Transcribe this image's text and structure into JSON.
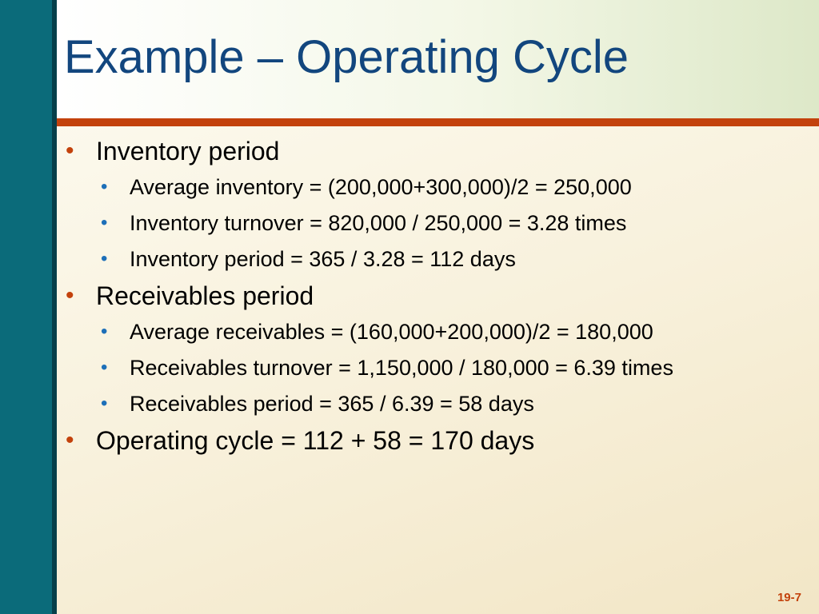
{
  "slide": {
    "title": "Example – Operating Cycle",
    "page_number": "19-7",
    "colors": {
      "left_bar": "#0b6b7a",
      "title_text": "#12467e",
      "accent_rule": "#c3420c",
      "sub_bullet": "#1d6fb8"
    }
  },
  "bullets": {
    "inventory_period": {
      "label": "Inventory period",
      "items": [
        "Average inventory = (200,000+300,000)/2 = 250,000",
        "Inventory turnover = 820,000 / 250,000 = 3.28 times",
        "Inventory period = 365 / 3.28 = 112 days"
      ]
    },
    "receivables_period": {
      "label": "Receivables period",
      "items": [
        "Average receivables = (160,000+200,000)/2 = 180,000",
        "Receivables turnover = 1,150,000 / 180,000 = 6.39 times",
        "Receivables period = 365 / 6.39 = 58 days"
      ]
    },
    "operating_cycle": {
      "label": "Operating cycle = 112 + 58 = 170 days"
    }
  }
}
